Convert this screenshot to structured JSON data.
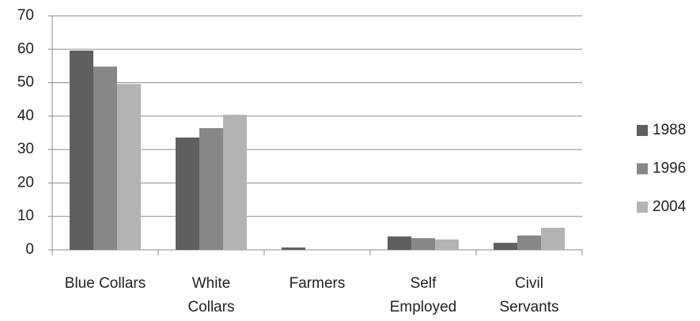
{
  "chart_data": {
    "type": "bar",
    "categories": [
      "Blue Collars",
      "White\nCollars",
      "Farmers",
      "Self\nEmployed",
      "Civil\nServants"
    ],
    "series": [
      {
        "name": "1988",
        "color": "#5f5f5f",
        "values": [
          59.6,
          33.6,
          0.7,
          4.0,
          2.1
        ]
      },
      {
        "name": "1996",
        "color": "#878787",
        "values": [
          54.8,
          36.4,
          0,
          3.5,
          4.3
        ]
      },
      {
        "name": "2004",
        "color": "#b3b3b3",
        "values": [
          49.6,
          40.4,
          0,
          3.1,
          6.6
        ]
      }
    ],
    "ylim": [
      0,
      70
    ],
    "yticks": [
      0,
      10,
      20,
      30,
      40,
      50,
      60,
      70
    ],
    "grid": true,
    "legend": "right"
  }
}
